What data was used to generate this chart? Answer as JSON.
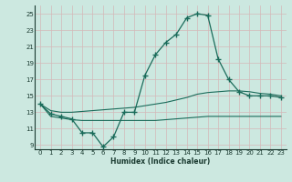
{
  "xlabel": "Humidex (Indice chaleur)",
  "bg_color": "#cce8e0",
  "grid_color": "#b8d8d0",
  "line_color": "#1a6b5a",
  "xlim": [
    -0.5,
    23.5
  ],
  "ylim": [
    8.5,
    26.0
  ],
  "xticks": [
    0,
    1,
    2,
    3,
    4,
    5,
    6,
    7,
    8,
    9,
    10,
    11,
    12,
    13,
    14,
    15,
    16,
    17,
    18,
    19,
    20,
    21,
    22,
    23
  ],
  "yticks": [
    9,
    11,
    13,
    15,
    17,
    19,
    21,
    23,
    25
  ],
  "main_y": [
    14.0,
    12.8,
    12.5,
    12.2,
    10.5,
    10.5,
    8.8,
    10.0,
    13.0,
    13.0,
    17.5,
    20.0,
    21.5,
    22.5,
    24.5,
    25.0,
    24.8,
    19.5,
    17.0,
    15.5,
    15.0,
    15.0,
    15.0,
    14.8
  ],
  "upper_y": [
    14.0,
    13.2,
    13.0,
    13.0,
    13.1,
    13.2,
    13.3,
    13.4,
    13.5,
    13.6,
    13.8,
    14.0,
    14.2,
    14.5,
    14.8,
    15.2,
    15.4,
    15.5,
    15.6,
    15.6,
    15.5,
    15.3,
    15.2,
    15.0
  ],
  "lower_y": [
    14.0,
    12.5,
    12.3,
    12.1,
    12.0,
    12.0,
    12.0,
    12.0,
    12.0,
    12.0,
    12.0,
    12.0,
    12.1,
    12.2,
    12.3,
    12.4,
    12.5,
    12.5,
    12.5,
    12.5,
    12.5,
    12.5,
    12.5,
    12.5
  ]
}
